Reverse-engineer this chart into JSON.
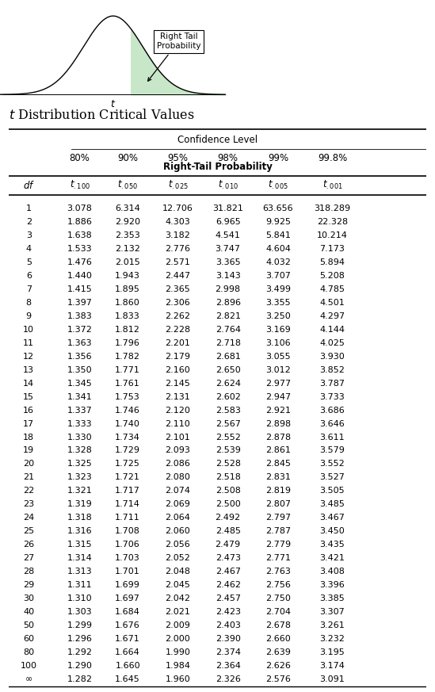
{
  "title": "t Distribution Critical Values",
  "confidence_levels": [
    "80%",
    "90%",
    "95%",
    "98%",
    "99%",
    "99.8%"
  ],
  "sub_labels": [
    ".100",
    ".050",
    ".025",
    ".010",
    ".005",
    ".001"
  ],
  "rows": [
    [
      "1",
      "3.078",
      "6.314",
      "12.706",
      "31.821",
      "63.656",
      "318.289"
    ],
    [
      "2",
      "1.886",
      "2.920",
      "4.303",
      "6.965",
      "9.925",
      "22.328"
    ],
    [
      "3",
      "1.638",
      "2.353",
      "3.182",
      "4.541",
      "5.841",
      "10.214"
    ],
    [
      "4",
      "1.533",
      "2.132",
      "2.776",
      "3.747",
      "4.604",
      "7.173"
    ],
    [
      "5",
      "1.476",
      "2.015",
      "2.571",
      "3.365",
      "4.032",
      "5.894"
    ],
    [
      "6",
      "1.440",
      "1.943",
      "2.447",
      "3.143",
      "3.707",
      "5.208"
    ],
    [
      "7",
      "1.415",
      "1.895",
      "2.365",
      "2.998",
      "3.499",
      "4.785"
    ],
    [
      "8",
      "1.397",
      "1.860",
      "2.306",
      "2.896",
      "3.355",
      "4.501"
    ],
    [
      "9",
      "1.383",
      "1.833",
      "2.262",
      "2.821",
      "3.250",
      "4.297"
    ],
    [
      "10",
      "1.372",
      "1.812",
      "2.228",
      "2.764",
      "3.169",
      "4.144"
    ],
    [
      "11",
      "1.363",
      "1.796",
      "2.201",
      "2.718",
      "3.106",
      "4.025"
    ],
    [
      "12",
      "1.356",
      "1.782",
      "2.179",
      "2.681",
      "3.055",
      "3.930"
    ],
    [
      "13",
      "1.350",
      "1.771",
      "2.160",
      "2.650",
      "3.012",
      "3.852"
    ],
    [
      "14",
      "1.345",
      "1.761",
      "2.145",
      "2.624",
      "2.977",
      "3.787"
    ],
    [
      "15",
      "1.341",
      "1.753",
      "2.131",
      "2.602",
      "2.947",
      "3.733"
    ],
    [
      "16",
      "1.337",
      "1.746",
      "2.120",
      "2.583",
      "2.921",
      "3.686"
    ],
    [
      "17",
      "1.333",
      "1.740",
      "2.110",
      "2.567",
      "2.898",
      "3.646"
    ],
    [
      "18",
      "1.330",
      "1.734",
      "2.101",
      "2.552",
      "2.878",
      "3.611"
    ],
    [
      "19",
      "1.328",
      "1.729",
      "2.093",
      "2.539",
      "2.861",
      "3.579"
    ],
    [
      "20",
      "1.325",
      "1.725",
      "2.086",
      "2.528",
      "2.845",
      "3.552"
    ],
    [
      "21",
      "1.323",
      "1.721",
      "2.080",
      "2.518",
      "2.831",
      "3.527"
    ],
    [
      "22",
      "1.321",
      "1.717",
      "2.074",
      "2.508",
      "2.819",
      "3.505"
    ],
    [
      "23",
      "1.319",
      "1.714",
      "2.069",
      "2.500",
      "2.807",
      "3.485"
    ],
    [
      "24",
      "1.318",
      "1.711",
      "2.064",
      "2.492",
      "2.797",
      "3.467"
    ],
    [
      "25",
      "1.316",
      "1.708",
      "2.060",
      "2.485",
      "2.787",
      "3.450"
    ],
    [
      "26",
      "1.315",
      "1.706",
      "2.056",
      "2.479",
      "2.779",
      "3.435"
    ],
    [
      "27",
      "1.314",
      "1.703",
      "2.052",
      "2.473",
      "2.771",
      "3.421"
    ],
    [
      "28",
      "1.313",
      "1.701",
      "2.048",
      "2.467",
      "2.763",
      "3.408"
    ],
    [
      "29",
      "1.311",
      "1.699",
      "2.045",
      "2.462",
      "2.756",
      "3.396"
    ],
    [
      "30",
      "1.310",
      "1.697",
      "2.042",
      "2.457",
      "2.750",
      "3.385"
    ],
    [
      "40",
      "1.303",
      "1.684",
      "2.021",
      "2.423",
      "2.704",
      "3.307"
    ],
    [
      "50",
      "1.299",
      "1.676",
      "2.009",
      "2.403",
      "2.678",
      "3.261"
    ],
    [
      "60",
      "1.296",
      "1.671",
      "2.000",
      "2.390",
      "2.660",
      "3.232"
    ],
    [
      "80",
      "1.292",
      "1.664",
      "1.990",
      "2.374",
      "2.639",
      "3.195"
    ],
    [
      "100",
      "1.290",
      "1.660",
      "1.984",
      "2.364",
      "2.626",
      "3.174"
    ],
    [
      "∞",
      "1.282",
      "1.645",
      "1.960",
      "2.326",
      "2.576",
      "3.091"
    ]
  ],
  "bg_color": "#ffffff",
  "text_color": "#000000",
  "curve_fill_color": "#c8e6c8",
  "box_label": "Right Tail\nProbability",
  "fig_width": 5.49,
  "fig_height": 8.73,
  "dpi": 100
}
